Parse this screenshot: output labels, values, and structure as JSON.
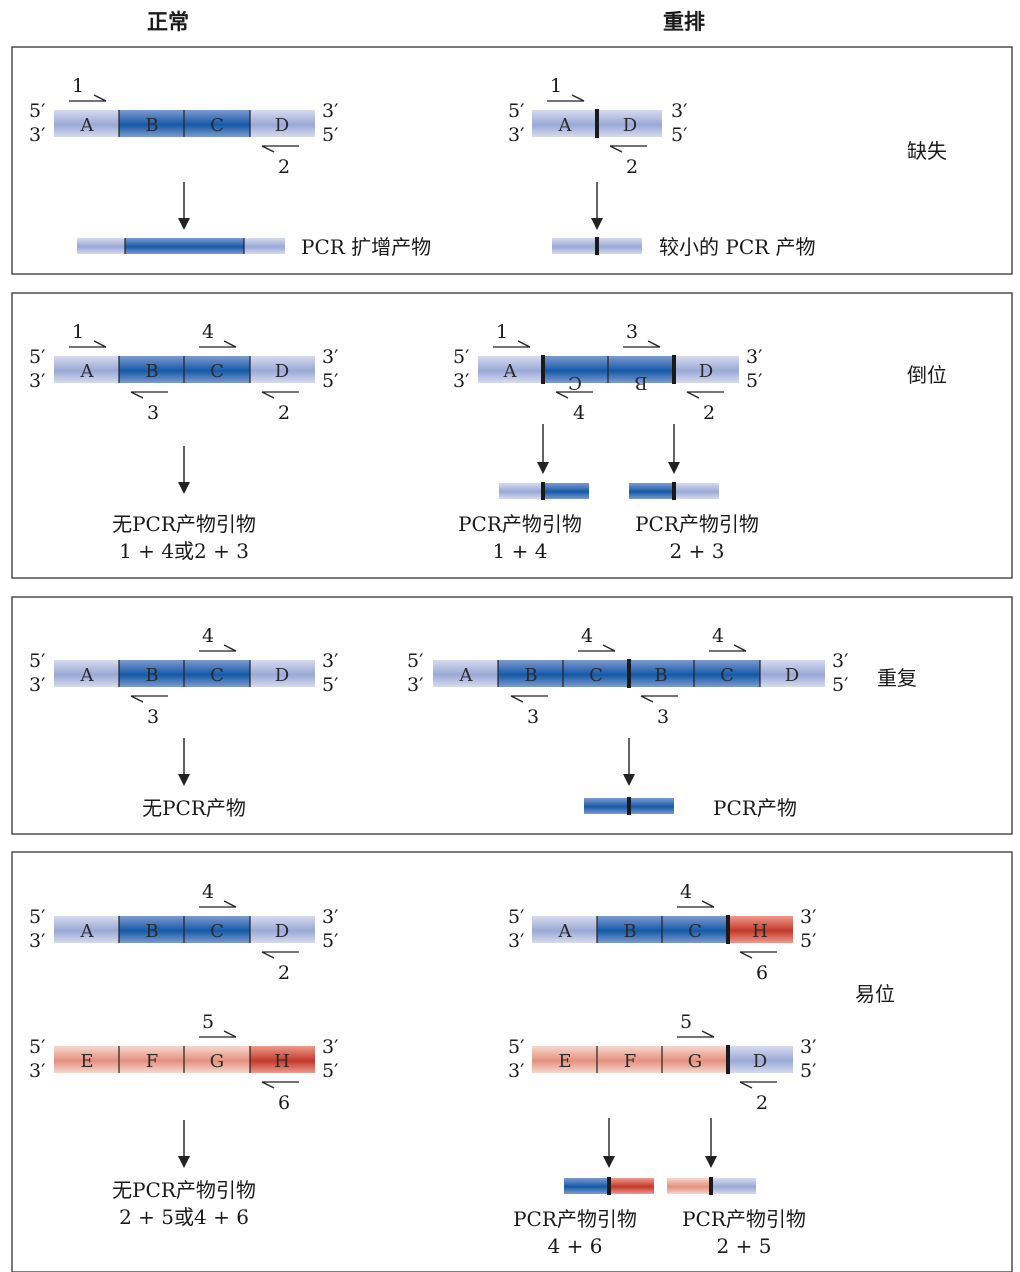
{
  "headers": {
    "normal": "正常",
    "rearranged": "重排"
  },
  "colors": {
    "blue_light_edge": "#d6dbef",
    "blue_light_mid": "#9aa8d6",
    "blue_dark_edge": "#7d9bd0",
    "blue_dark_mid": "#1559a8",
    "red_light_edge": "#f7d8cf",
    "red_light_mid": "#e4907d",
    "red_dark_edge": "#ef9a8d",
    "red_dark_mid": "#c23a2a",
    "junction": "#1a1a1a",
    "frame": "#333333"
  },
  "panels": [
    {
      "rearrangement": "缺失",
      "normal": {
        "segments": [
          "A",
          "B",
          "C",
          "D"
        ],
        "primers": [
          "1",
          "2"
        ],
        "product_label": "PCR 扩增产物"
      },
      "rearranged": {
        "segments": [
          "A",
          "D"
        ],
        "primers": [
          "1",
          "2"
        ],
        "product_label": "较小的 PCR 产物"
      }
    },
    {
      "rearrangement": "倒位",
      "normal": {
        "segments": [
          "A",
          "B",
          "C",
          "D"
        ],
        "primers": [
          "1",
          "4",
          "3",
          "2"
        ],
        "result_line1": "无PCR产物引物",
        "result_line2": "1 + 4或2 + 3"
      },
      "rearranged": {
        "segments": [
          "A",
          "C",
          "B",
          "D"
        ],
        "primers": [
          "1",
          "3",
          "4",
          "2"
        ],
        "product1_line1": "PCR产物引物",
        "product1_line2": "1 + 4",
        "product2_line1": "PCR产物引物",
        "product2_line2": "2 + 3"
      }
    },
    {
      "rearrangement": "重复",
      "normal": {
        "segments": [
          "A",
          "B",
          "C",
          "D"
        ],
        "primers": [
          "4",
          "3"
        ],
        "result": "无PCR产物"
      },
      "rearranged": {
        "segments": [
          "A",
          "B",
          "C",
          "B",
          "C",
          "D"
        ],
        "primers": [
          "4",
          "4",
          "3",
          "3"
        ],
        "product_label": "PCR产物"
      }
    },
    {
      "rearrangement": "易位",
      "normal": {
        "chrom1": {
          "segments": [
            "A",
            "B",
            "C",
            "D"
          ],
          "primers": [
            "4",
            "2"
          ]
        },
        "chrom2": {
          "segments": [
            "E",
            "F",
            "G",
            "H"
          ],
          "primers": [
            "5",
            "6"
          ]
        },
        "result_line1": "无PCR产物引物",
        "result_line2": "2 + 5或4 + 6"
      },
      "rearranged": {
        "chrom1": {
          "segments": [
            "A",
            "B",
            "C",
            "H"
          ],
          "primers": [
            "4",
            "6"
          ]
        },
        "chrom2": {
          "segments": [
            "E",
            "F",
            "G",
            "D"
          ],
          "primers": [
            "5",
            "2"
          ]
        },
        "product1_line1": "PCR产物引物",
        "product1_line2": "4 + 6",
        "product2_line1": "PCR产物引物",
        "product2_line2": "2 + 5"
      }
    }
  ],
  "strand_ends": {
    "five": "5′",
    "three": "3′"
  }
}
